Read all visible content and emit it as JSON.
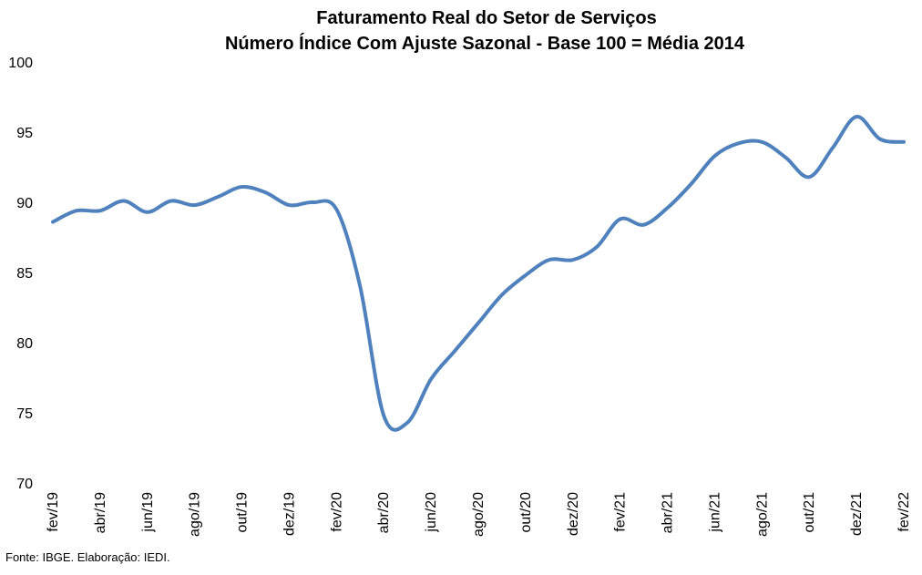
{
  "chart_data": {
    "type": "line",
    "title": "Faturamento Real do Setor de Serviços",
    "subtitle": "Número Índice Com Ajuste Sazonal - Base 100 = Média 2014",
    "xlabel": "",
    "ylabel": "",
    "ylim": [
      70,
      100
    ],
    "yticks": [
      70,
      75,
      80,
      85,
      90,
      95,
      100
    ],
    "grid": false,
    "legend": "none",
    "x": [
      "fev/19",
      "mar/19",
      "abr/19",
      "mai/19",
      "jun/19",
      "jul/19",
      "ago/19",
      "set/19",
      "out/19",
      "nov/19",
      "dez/19",
      "jan/20",
      "fev/20",
      "mar/20",
      "abr/20",
      "mai/20",
      "jun/20",
      "jul/20",
      "ago/20",
      "set/20",
      "out/20",
      "nov/20",
      "dez/20",
      "jan/21",
      "fev/21",
      "mar/21",
      "abr/21",
      "mai/21",
      "jun/21",
      "jul/21",
      "ago/21",
      "set/21",
      "out/21",
      "nov/21",
      "dez/21",
      "jan/22",
      "fev/22"
    ],
    "xtick_labels": [
      "fev/19",
      "abr/19",
      "jun/19",
      "ago/19",
      "out/19",
      "dez/19",
      "fev/20",
      "abr/20",
      "jun/20",
      "ago/20",
      "out/20",
      "dez/20",
      "fev/21",
      "abr/21",
      "jun/21",
      "ago/21",
      "out/21",
      "dez/21",
      "fev/22"
    ],
    "series": [
      {
        "color": "#4F81BD",
        "values": [
          88.6,
          89.4,
          89.4,
          90.1,
          89.3,
          90.1,
          89.8,
          90.4,
          91.1,
          90.7,
          89.8,
          90.0,
          89.5,
          84.0,
          74.8,
          74.3,
          77.4,
          79.4,
          81.4,
          83.4,
          84.8,
          85.9,
          85.9,
          86.8,
          88.8,
          88.4,
          89.6,
          91.3,
          93.3,
          94.2,
          94.3,
          93.2,
          91.8,
          93.9,
          96.1,
          94.5,
          94.3
        ]
      }
    ]
  },
  "source_note": "Fonte: IBGE. Elaboração: IEDI."
}
